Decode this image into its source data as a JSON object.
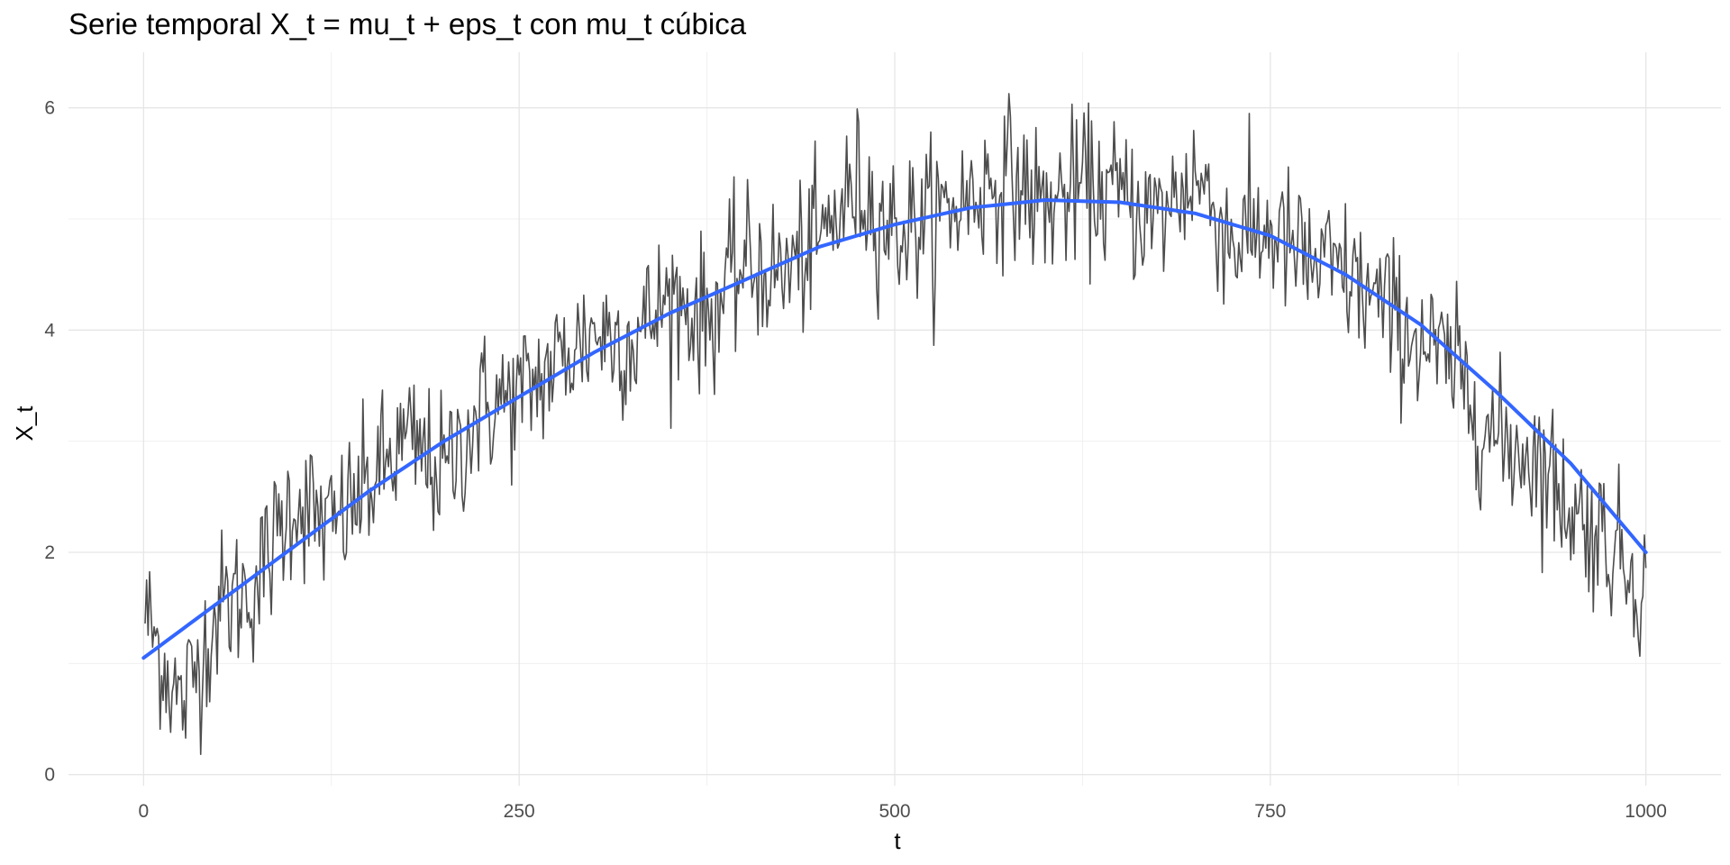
{
  "chart_data": {
    "type": "line",
    "title": "Serie temporal X_t = mu_t + eps_t con mu_t cúbica",
    "xlabel": "t",
    "ylabel": "X_t",
    "xlim": [
      -50,
      1050
    ],
    "ylim": [
      -0.1,
      6.5
    ],
    "x_ticks": [
      0,
      250,
      500,
      750,
      1000
    ],
    "x_tick_labels": [
      "0",
      "250",
      "500",
      "750",
      "1000"
    ],
    "y_ticks": [
      0,
      2,
      4,
      6
    ],
    "y_tick_labels": [
      "0",
      "2",
      "4",
      "6"
    ],
    "grid": true,
    "legend": "none",
    "series": [
      {
        "kind": "observed",
        "color": "#4d4d4d",
        "noise_sd": 0.45,
        "n_points": 1000,
        "x": [
          0,
          25,
          50,
          75,
          100,
          125,
          150,
          175,
          200,
          225,
          250,
          275,
          300,
          325,
          350,
          375,
          400,
          425,
          450,
          475,
          500,
          525,
          550,
          575,
          600,
          625,
          650,
          675,
          700,
          725,
          750,
          775,
          800,
          825,
          850,
          875,
          900,
          925,
          950,
          975,
          1000
        ],
        "values": [
          1.5,
          0.6,
          1.5,
          1.7,
          2.5,
          2.2,
          2.6,
          3.0,
          2.7,
          3.3,
          3.4,
          3.7,
          4.0,
          3.9,
          4.3,
          4.1,
          4.6,
          4.5,
          4.8,
          5.3,
          4.9,
          5.0,
          5.2,
          5.4,
          5.1,
          5.3,
          5.2,
          5.0,
          5.4,
          4.8,
          4.9,
          4.6,
          4.5,
          4.2,
          3.9,
          3.6,
          3.0,
          2.9,
          2.4,
          2.1,
          1.7
        ]
      },
      {
        "kind": "fitted",
        "color": "#3366ff",
        "x": [
          0,
          50,
          100,
          150,
          200,
          250,
          300,
          350,
          400,
          450,
          500,
          550,
          600,
          650,
          700,
          750,
          800,
          850,
          900,
          950,
          1000
        ],
        "values": [
          1.05,
          1.55,
          2.05,
          2.55,
          3.0,
          3.4,
          3.8,
          4.15,
          4.45,
          4.75,
          4.95,
          5.1,
          5.17,
          5.15,
          5.05,
          4.85,
          4.5,
          4.05,
          3.45,
          2.8,
          2.0
        ]
      }
    ]
  }
}
